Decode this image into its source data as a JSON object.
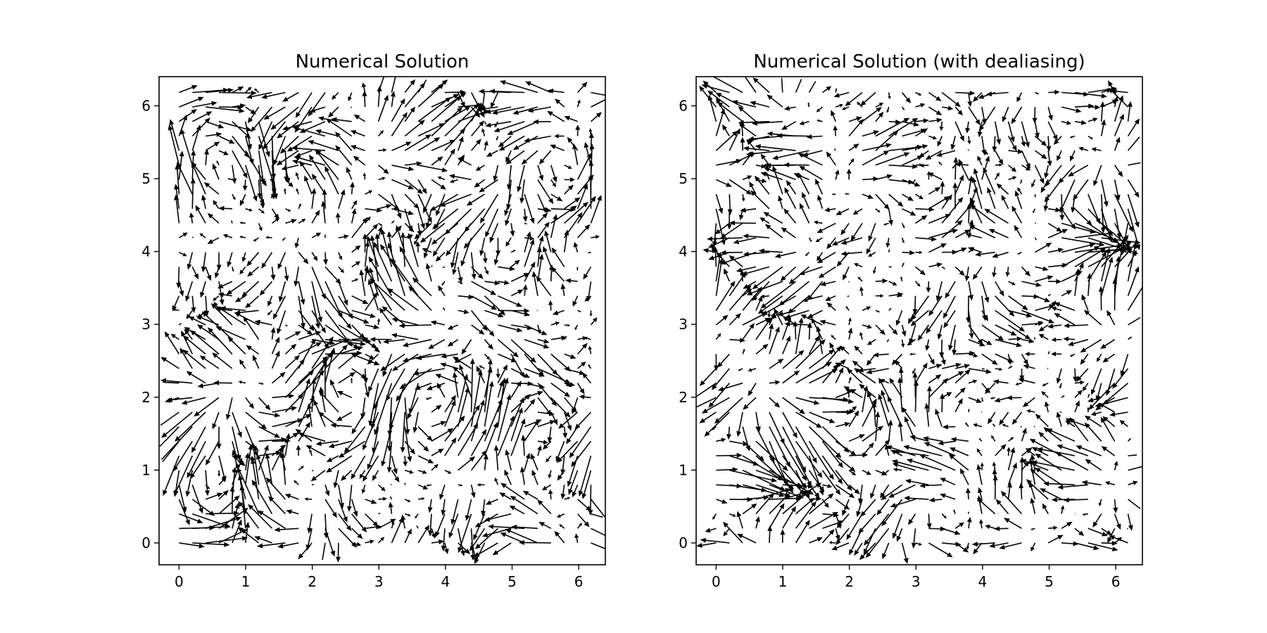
{
  "chart_data": [
    {
      "type": "quiver",
      "title": "Numerical Solution",
      "xlabel": "",
      "ylabel": "",
      "xlim": [
        -0.3,
        6.4
      ],
      "ylim": [
        -0.3,
        6.4
      ],
      "x_ticks": [
        0,
        1,
        2,
        3,
        4,
        5,
        6
      ],
      "y_ticks": [
        0,
        1,
        2,
        3,
        4,
        5,
        6
      ],
      "grid": false,
      "arrow_color": "#000000",
      "field": {
        "x_range": [
          0,
          6.183
        ],
        "y_range": [
          0,
          6.183
        ],
        "points_per_axis": 32,
        "seed": 7,
        "description_of_values": "2D velocity vectors on a uniform 32x32 grid over [0, 2π)"
      }
    },
    {
      "type": "quiver",
      "title": "Numerical Solution (with dealiasing)",
      "xlabel": "",
      "ylabel": "",
      "xlim": [
        -0.3,
        6.4
      ],
      "ylim": [
        -0.3,
        6.4
      ],
      "x_ticks": [
        0,
        1,
        2,
        3,
        4,
        5,
        6
      ],
      "y_ticks": [
        0,
        1,
        2,
        3,
        4,
        5,
        6
      ],
      "grid": false,
      "arrow_color": "#000000",
      "field": {
        "x_range": [
          0,
          6.183
        ],
        "y_range": [
          0,
          6.183
        ],
        "points_per_axis": 32,
        "seed": 19,
        "description_of_values": "2D velocity vectors on a uniform 32x32 grid over [0, 2π)"
      }
    }
  ]
}
